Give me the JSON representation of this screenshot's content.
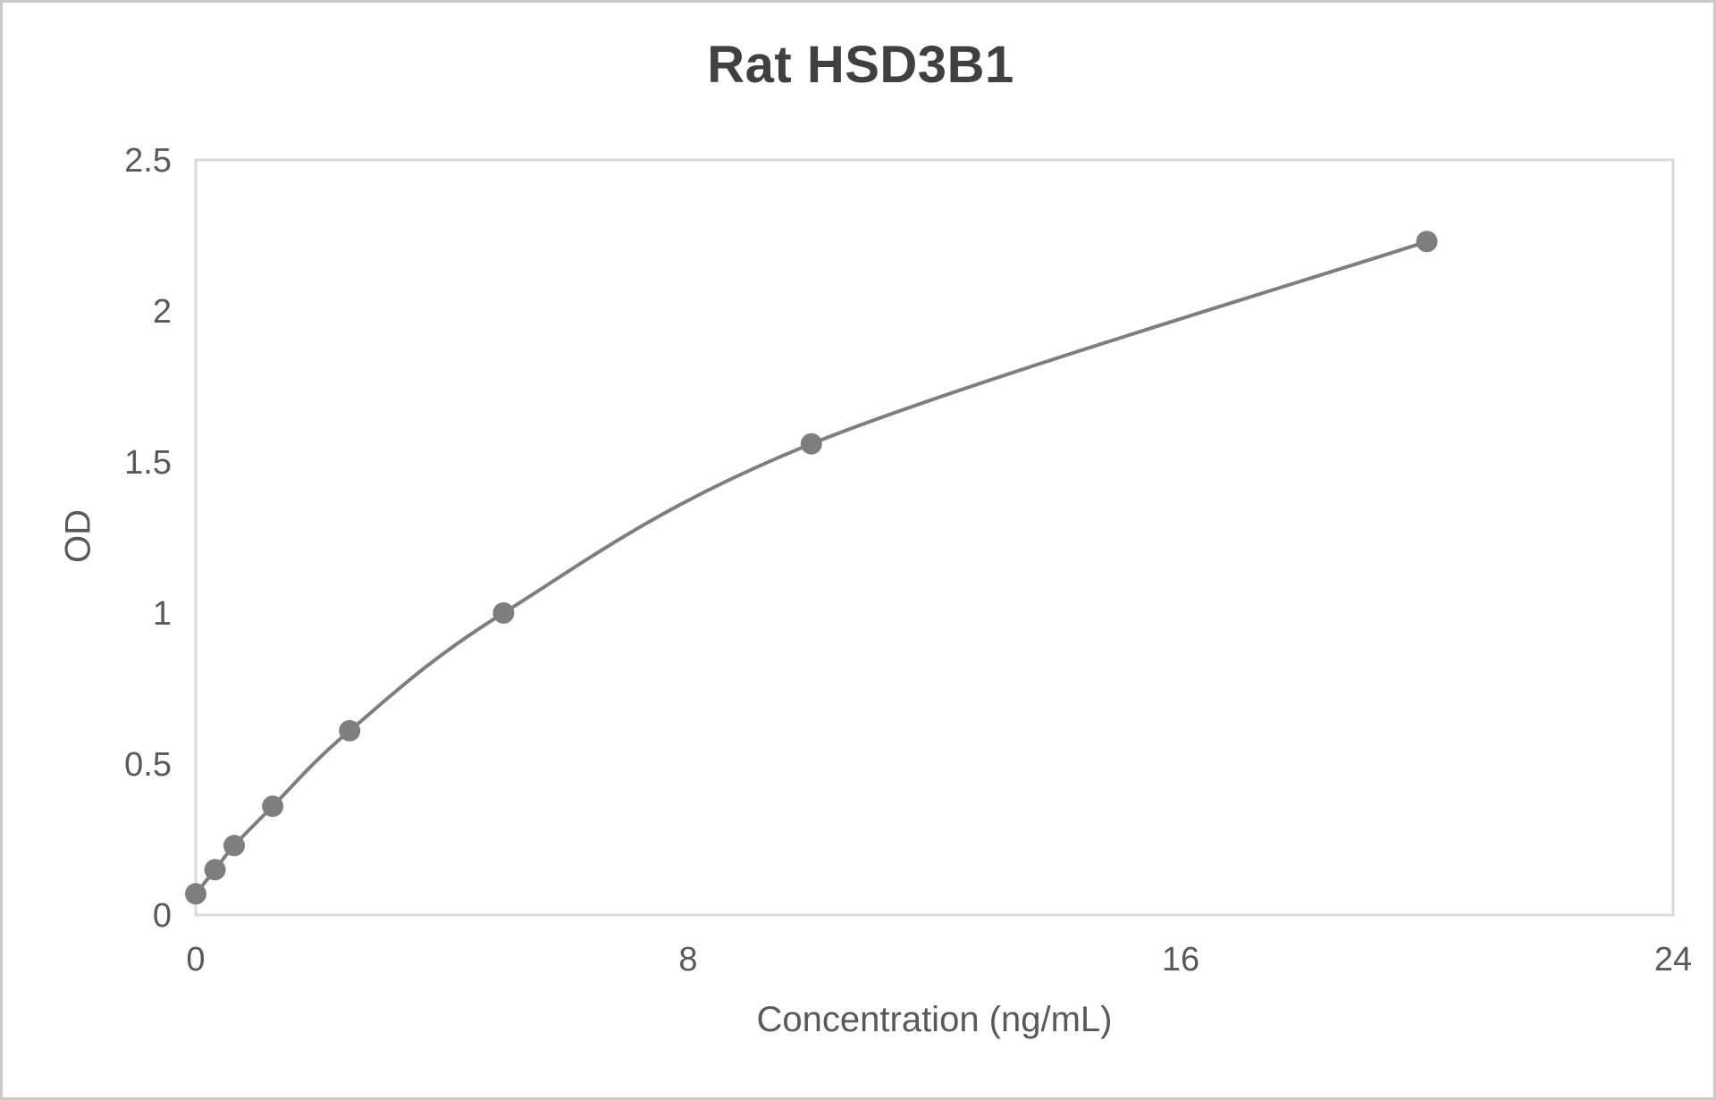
{
  "chart_data": {
    "type": "line",
    "title": "Rat HSD3B1",
    "xlabel": "Concentration (ng/mL)",
    "ylabel": "OD",
    "x": [
      0,
      0.313,
      0.625,
      1.25,
      2.5,
      5,
      10,
      20
    ],
    "y": [
      0.07,
      0.15,
      0.23,
      0.36,
      0.61,
      1.0,
      1.56,
      2.23
    ],
    "xlim": [
      0,
      24
    ],
    "ylim": [
      0,
      2.5
    ],
    "x_ticks": [
      "0",
      "8",
      "16",
      "24"
    ],
    "y_ticks": [
      "0",
      "0.5",
      "1",
      "1.5",
      "2",
      "2.5"
    ],
    "grid": "off",
    "legend": "none",
    "line_smooth": true,
    "colors": {
      "series": "#7e7e7e",
      "axis_line": "#d9d9d9",
      "tick_label": "#595959",
      "title_text": "#404040",
      "frame_border": "#c9c9c9"
    }
  }
}
